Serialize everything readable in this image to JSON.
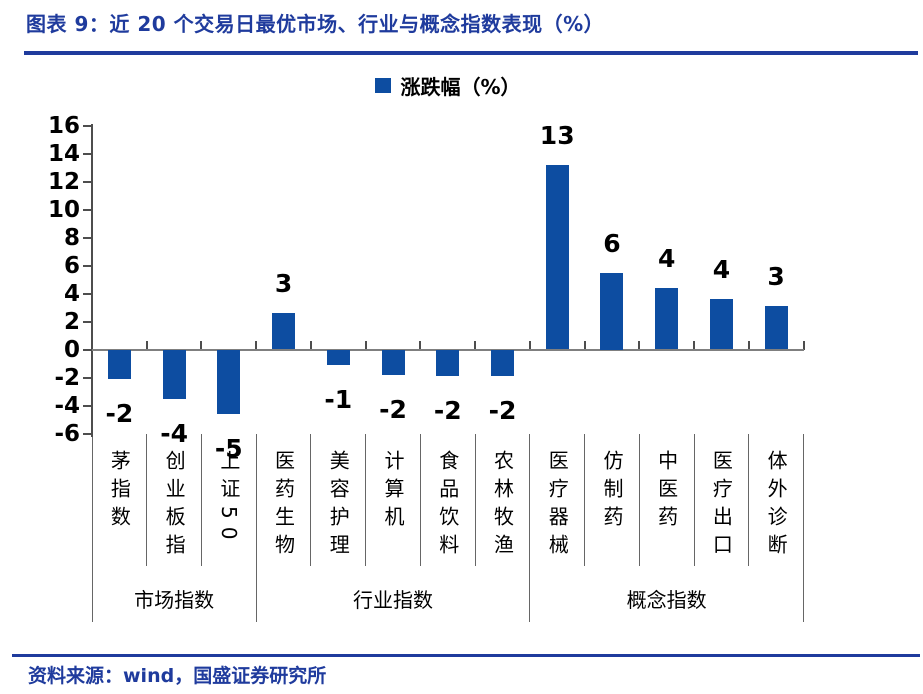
{
  "header": {
    "title": "图表 9：近 20 个交易日最优市场、行业与概念指数表现（%）"
  },
  "legend": {
    "label": "涨跌幅（%）"
  },
  "source": {
    "text": "资料来源：wind，国盛证券研究所"
  },
  "colors": {
    "accent_navy": "#1f3b9d",
    "bar_blue": "#0d4da1",
    "axis_gray": "#4d4d4d",
    "zero_line_gray": "#7f7f7f"
  },
  "chart_data": {
    "type": "bar",
    "title": "近 20 个交易日最优市场、行业与概念指数表现（%）",
    "legend_entries": [
      "涨跌幅（%）"
    ],
    "legend_position": "top",
    "grid": false,
    "categories": [
      "茅指数",
      "创业板指",
      "上证50",
      "医药生物",
      "美容护理",
      "计算机",
      "食品饮料",
      "农林牧渔",
      "医疗器械",
      "仿制药",
      "中医药",
      "医疗出口",
      "体外诊断"
    ],
    "series": [
      {
        "name": "涨跌幅（%）",
        "values": [
          -2.1,
          -3.5,
          -4.6,
          2.6,
          -1.1,
          -1.8,
          -1.9,
          -1.9,
          13.2,
          5.5,
          4.4,
          3.6,
          3.1
        ]
      }
    ],
    "bar_labels": [
      "-2",
      "-4",
      "-5",
      "3",
      "-1",
      "-2",
      "-2",
      "-2",
      "13",
      "6",
      "4",
      "4",
      "3"
    ],
    "groups": [
      {
        "label": "市场指数",
        "count": 3
      },
      {
        "label": "行业指数",
        "count": 5
      },
      {
        "label": "概念指数",
        "count": 5
      }
    ],
    "ylabel": "",
    "xlabel": "",
    "ylim": [
      -6,
      16
    ],
    "ytick_step": 2
  }
}
